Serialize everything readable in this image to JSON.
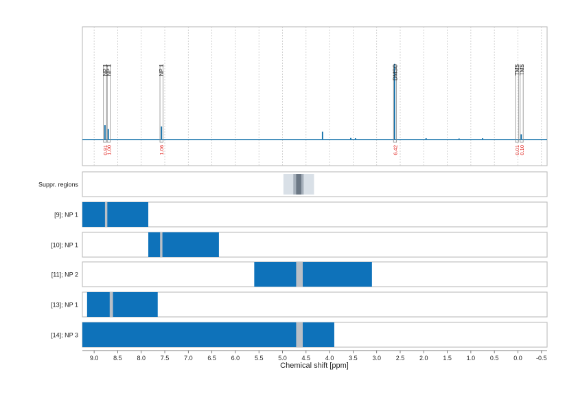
{
  "chart_data": {
    "type": "nmr-spectrum-with-region-tracks",
    "xlabel": "Chemical shift [ppm]",
    "x_ticks": [
      9.0,
      8.5,
      8.0,
      7.5,
      7.0,
      6.5,
      6.0,
      5.5,
      5.0,
      4.5,
      4.0,
      3.5,
      3.0,
      2.5,
      2.0,
      1.5,
      1.0,
      0.5,
      0.0,
      -0.5
    ],
    "x_tick_labels": [
      "9.0",
      "8.5",
      "8.0",
      "7.5",
      "7.0",
      "6.5",
      "6.0",
      "5.5",
      "5.0",
      "4.5",
      "4.0",
      "3.5",
      "3.0",
      "2.5",
      "2.0",
      "1.5",
      "1.0",
      "0.5",
      "0.0",
      "-0.5"
    ],
    "xlim": [
      9.25,
      -0.62
    ],
    "grid": "vertical dotted",
    "spectrum": {
      "baseline_points": [
        [
          9.25,
          0.0
        ],
        [
          -0.62,
          0.0
        ]
      ],
      "peaks": [
        {
          "shift": 8.77,
          "height": 0.11
        },
        {
          "shift": 8.7,
          "height": 0.08
        },
        {
          "shift": 7.57,
          "height": 0.1
        },
        {
          "shift": 4.15,
          "height": 0.06
        },
        {
          "shift": 3.55,
          "height": 0.012
        },
        {
          "shift": 3.45,
          "height": 0.01
        },
        {
          "shift": 2.62,
          "height": 0.58
        },
        {
          "shift": 1.95,
          "height": 0.01
        },
        {
          "shift": 1.25,
          "height": 0.008
        },
        {
          "shift": 0.75,
          "height": 0.01
        },
        {
          "shift": -0.07,
          "height": 0.04
        }
      ]
    },
    "annotations": [
      {
        "label": "NP 1",
        "shift": 8.77,
        "value": "0.91"
      },
      {
        "label": "NP 1",
        "shift": 8.69,
        "value": "1.00"
      },
      {
        "label": "NP 1",
        "shift": 7.57,
        "value": "1.06"
      },
      {
        "label": "DMSO",
        "shift": 2.61,
        "value": "6.42"
      },
      {
        "label": "TMS",
        "shift": 0.02,
        "value": "0.01"
      },
      {
        "label": "TMS",
        "shift": -0.08,
        "value": "0.10"
      }
    ],
    "tracks": [
      {
        "label": "Suppr. regions",
        "type": "suppression",
        "outer": [
          4.98,
          4.33
        ],
        "mid": [
          4.77,
          4.55
        ],
        "inner": [
          4.71,
          4.6
        ]
      },
      {
        "label": "[9]; NP 1",
        "range": [
          9.25,
          7.85
        ],
        "gap": [
          8.77,
          8.72
        ]
      },
      {
        "label": "[10]; NP 1",
        "range": [
          7.85,
          6.35
        ],
        "gap": [
          7.6,
          7.55
        ]
      },
      {
        "label": "[11]; NP 2",
        "range": [
          5.6,
          3.1
        ],
        "gap": [
          4.71,
          4.57
        ]
      },
      {
        "label": "[13]; NP 1",
        "range": [
          9.15,
          7.65
        ],
        "gap": [
          8.67,
          8.6
        ]
      },
      {
        "label": "[14]; NP 3",
        "range": [
          9.25,
          3.9
        ],
        "gap": [
          4.71,
          4.57
        ]
      }
    ],
    "colors": {
      "spectrum": "#0f6ea8",
      "region": "#0e72ba",
      "gap": "#b9bfc6",
      "value_label": "#e0201c",
      "suppr_outer": "#d9e0e7",
      "suppr_mid": "#a6b0bb",
      "suppr_inner": "#6c7885"
    }
  }
}
